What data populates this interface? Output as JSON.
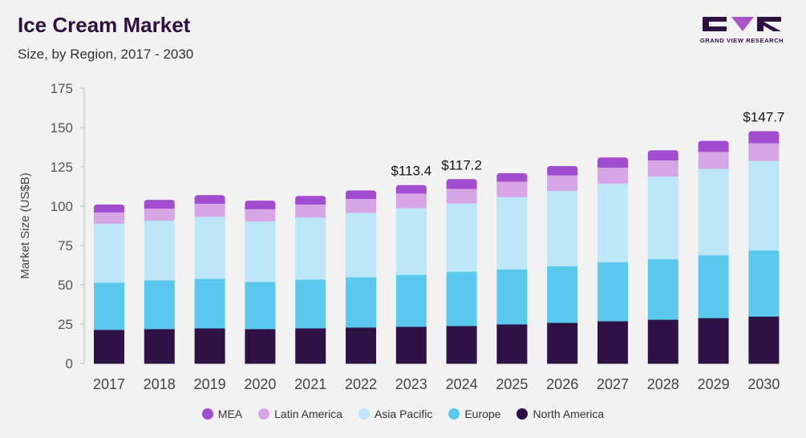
{
  "header": {
    "title": "Ice Cream Market",
    "subtitle": "Size, by Region, 2017 - 2030"
  },
  "logo": {
    "text": "GRAND VIEW RESEARCH",
    "color": "#2d1240",
    "accent": "#a855c8"
  },
  "chart_data": {
    "type": "bar",
    "stacked": true,
    "title": "Ice Cream Market",
    "subtitle": "Size, by Region, 2017 - 2030",
    "xlabel": "",
    "ylabel": "Market Size (US$B)",
    "ylim": [
      0,
      175
    ],
    "yticks": [
      0,
      25,
      50,
      75,
      100,
      125,
      150,
      175
    ],
    "grid": false,
    "legend_position": "bottom",
    "categories": [
      "2017",
      "2018",
      "2019",
      "2020",
      "2021",
      "2022",
      "2023",
      "2024",
      "2025",
      "2026",
      "2027",
      "2028",
      "2029",
      "2030"
    ],
    "series": [
      {
        "name": "North America",
        "color": "#2e1145",
        "values": [
          21.5,
          22.0,
          22.5,
          22.0,
          22.5,
          23.0,
          23.5,
          24.0,
          25.0,
          26.0,
          27.0,
          28.0,
          29.0,
          30.0
        ]
      },
      {
        "name": "Europe",
        "color": "#5bc8ee",
        "values": [
          30.0,
          31.0,
          31.5,
          30.0,
          31.0,
          32.0,
          33.0,
          34.5,
          35.0,
          36.0,
          37.5,
          38.5,
          40.0,
          42.0
        ]
      },
      {
        "name": "Asia Pacific",
        "color": "#bde6f8",
        "values": [
          37.5,
          38.0,
          39.5,
          38.5,
          39.5,
          41.0,
          42.5,
          43.5,
          46.0,
          48.0,
          50.0,
          52.5,
          55.0,
          57.0
        ]
      },
      {
        "name": "Latin America",
        "color": "#d6a6e6",
        "values": [
          7.0,
          7.5,
          8.0,
          7.5,
          8.0,
          8.5,
          9.0,
          9.0,
          9.5,
          9.5,
          10.0,
          10.0,
          10.5,
          11.0
        ]
      },
      {
        "name": "MEA",
        "color": "#a24dcf",
        "values": [
          5.0,
          5.5,
          5.5,
          5.5,
          5.5,
          5.5,
          5.4,
          6.2,
          5.5,
          6.0,
          6.5,
          6.5,
          7.0,
          7.7
        ]
      }
    ],
    "annotations": [
      {
        "category": "2023",
        "text": "$113.4"
      },
      {
        "category": "2024",
        "text": "$117.2"
      },
      {
        "category": "2030",
        "text": "$147.7"
      }
    ],
    "legend_order": [
      "MEA",
      "Latin America",
      "Asia Pacific",
      "Europe",
      "North America"
    ]
  }
}
